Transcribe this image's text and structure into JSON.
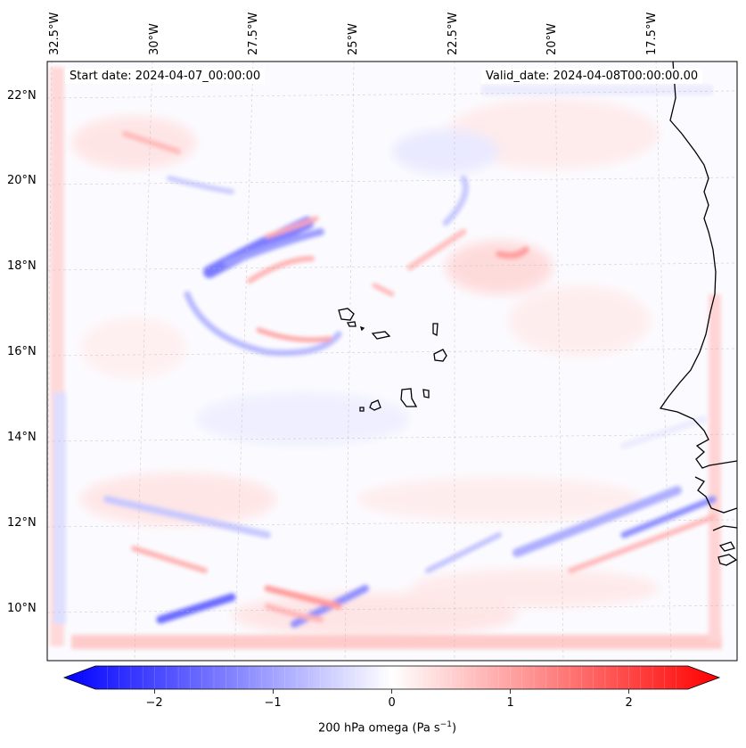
{
  "map": {
    "start_date": "Start date: 2024-04-07_00:00:00",
    "valid_date": "Valid_date: 2024-04-08T00:00:00.00",
    "lon_labels": [
      "32.5°W",
      "30°W",
      "27.5°W",
      "25°W",
      "22.5°W",
      "20°W",
      "17.5°W"
    ],
    "lat_labels": [
      "22°N",
      "20°N",
      "18°N",
      "16°N",
      "14°N",
      "12°N",
      "10°N"
    ],
    "field": "200 hPa omega",
    "colors": {
      "negative": "#0000ff",
      "neutral": "#ffffff",
      "positive": "#ff0000",
      "coast": "#000000"
    }
  },
  "colorbar": {
    "ticks": [
      "−2",
      "−1",
      "0",
      "1",
      "2"
    ],
    "tick_values": [
      -2,
      -1,
      0,
      1,
      2
    ],
    "range": [
      -2.5,
      2.5
    ],
    "label_main": "200 hPa omega (Pa s",
    "label_exp": "−1",
    "label_close": ")"
  }
}
